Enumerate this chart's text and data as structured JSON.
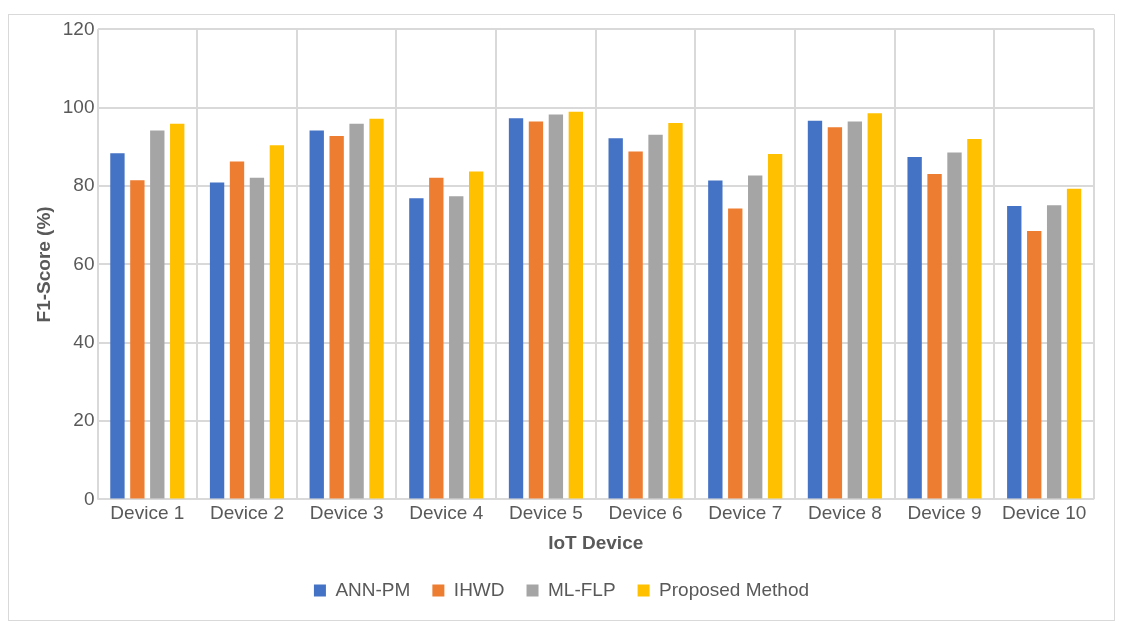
{
  "chart_data": {
    "type": "bar",
    "xlabel": "IoT Device",
    "ylabel": "F1-Score (%)",
    "categories": [
      "Device 1",
      "Device 2",
      "Device 3",
      "Device 4",
      "Device 5",
      "Device 6",
      "Device 7",
      "Device 8",
      "Device 9",
      "Device 10"
    ],
    "series": [
      {
        "name": "ANN-PM",
        "color": "#4472c4",
        "values": [
          88.4,
          80.9,
          94.2,
          76.9,
          97.3,
          92.2,
          81.4,
          96.7,
          87.4,
          74.9
        ]
      },
      {
        "name": "IHWD",
        "color": "#ed7d31",
        "values": [
          81.5,
          86.3,
          92.8,
          82.1,
          96.5,
          88.8,
          74.3,
          95.0,
          83.1,
          68.5
        ]
      },
      {
        "name": "ML-FLP",
        "color": "#a5a5a5",
        "values": [
          94.2,
          82.1,
          95.9,
          77.4,
          98.3,
          93.1,
          82.7,
          96.5,
          88.6,
          75.1
        ]
      },
      {
        "name": "Proposed Method",
        "color": "#ffc000",
        "values": [
          95.9,
          90.4,
          97.2,
          83.7,
          99.0,
          96.1,
          88.2,
          98.6,
          92.0,
          79.3
        ]
      }
    ],
    "ylim": [
      0,
      120
    ],
    "yticks": [
      0,
      20,
      40,
      60,
      80,
      100,
      120
    ],
    "grid": true,
    "legend": "bottom"
  }
}
